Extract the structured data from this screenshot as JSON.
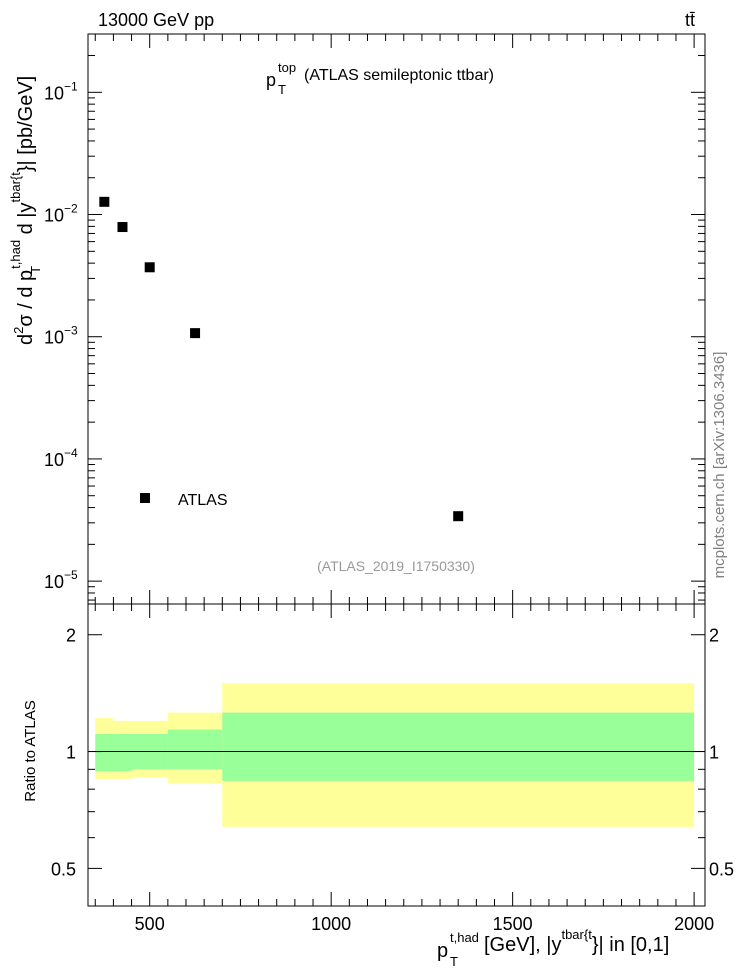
{
  "header": {
    "energy_label": "13000 GeV pp",
    "process_label": "tt̄"
  },
  "watermark": "mcplots.cern.ch [arXiv:1306.3436]",
  "colors": {
    "data_marker": "#000000",
    "band_inner": "#99ff99",
    "band_outer": "#ffff99",
    "analysis_label": "#999999"
  },
  "chart_data": [
    {
      "type": "scatter",
      "title_main": "p",
      "title_sup": "top",
      "title_sub": "T",
      "title_rest": "(ATLAS semileptonic ttbar)",
      "ylabel": "d²σ / d p_T^{t,had} d |y^{tbar{t}}| [pb/GeV]",
      "ylabel_parts": {
        "lead": "d",
        "sup2": "2",
        "sigma": "σ / d p",
        "sup_thad": "t,had",
        "sub_T": "T",
        "mid": " d |y",
        "sup_tbar": "tbar{t",
        "tail": "}| [pb/GeV]"
      },
      "yscale": "log",
      "ylim": [
        6.5e-06,
        0.3
      ],
      "xlim": [
        330,
        2030
      ],
      "yticks": [
        {
          "base": "10",
          "exp": "−1",
          "value": 0.1
        },
        {
          "base": "10",
          "exp": "−2",
          "value": 0.01
        },
        {
          "base": "10",
          "exp": "−3",
          "value": 0.001
        },
        {
          "base": "10",
          "exp": "−4",
          "value": 0.0001
        },
        {
          "base": "10",
          "exp": "−5",
          "value": 1e-05
        }
      ],
      "legend": {
        "label": "ATLAS",
        "placement": "bottom-left"
      },
      "analysis_label": "(ATLAS_2019_I1750330)",
      "series": [
        {
          "name": "ATLAS",
          "x": [
            375,
            425,
            500,
            625,
            1350
          ],
          "y": [
            0.0127,
            0.0079,
            0.0037,
            0.00107,
            3.4e-05
          ]
        }
      ]
    },
    {
      "type": "area",
      "ylabel": "Ratio to ATLAS",
      "ylim": [
        0.4,
        2.4
      ],
      "xlim": [
        330,
        2030
      ],
      "yticks": [
        "0.5",
        "1",
        "2"
      ],
      "ytick_values": [
        0.5,
        1,
        2
      ],
      "xticks": [
        "500",
        "1000",
        "1500",
        "2000"
      ],
      "xtick_values": [
        500,
        1000,
        1500,
        2000
      ],
      "xlabel": "p_T^{t,had} [GeV], |y^{tbar{t}}| in [0,1]",
      "xlabel_parts": {
        "p": "p",
        "sup": "t,had",
        "sub": "T",
        "mid": " [GeV], |y",
        "sup2": "tbar{t",
        "tail": "}| in [0,1]"
      },
      "reference_line": 1,
      "bins": [
        {
          "x": [
            350,
            400
          ],
          "inner": [
            0.89,
            1.11
          ],
          "outer": [
            0.85,
            1.22
          ]
        },
        {
          "x": [
            400,
            450
          ],
          "inner": [
            0.89,
            1.11
          ],
          "outer": [
            0.85,
            1.2
          ]
        },
        {
          "x": [
            450,
            550
          ],
          "inner": [
            0.9,
            1.11
          ],
          "outer": [
            0.86,
            1.2
          ]
        },
        {
          "x": [
            550,
            700
          ],
          "inner": [
            0.9,
            1.14
          ],
          "outer": [
            0.83,
            1.26
          ]
        },
        {
          "x": [
            700,
            2000
          ],
          "inner": [
            0.84,
            1.26
          ],
          "outer": [
            0.64,
            1.5
          ]
        }
      ]
    }
  ]
}
